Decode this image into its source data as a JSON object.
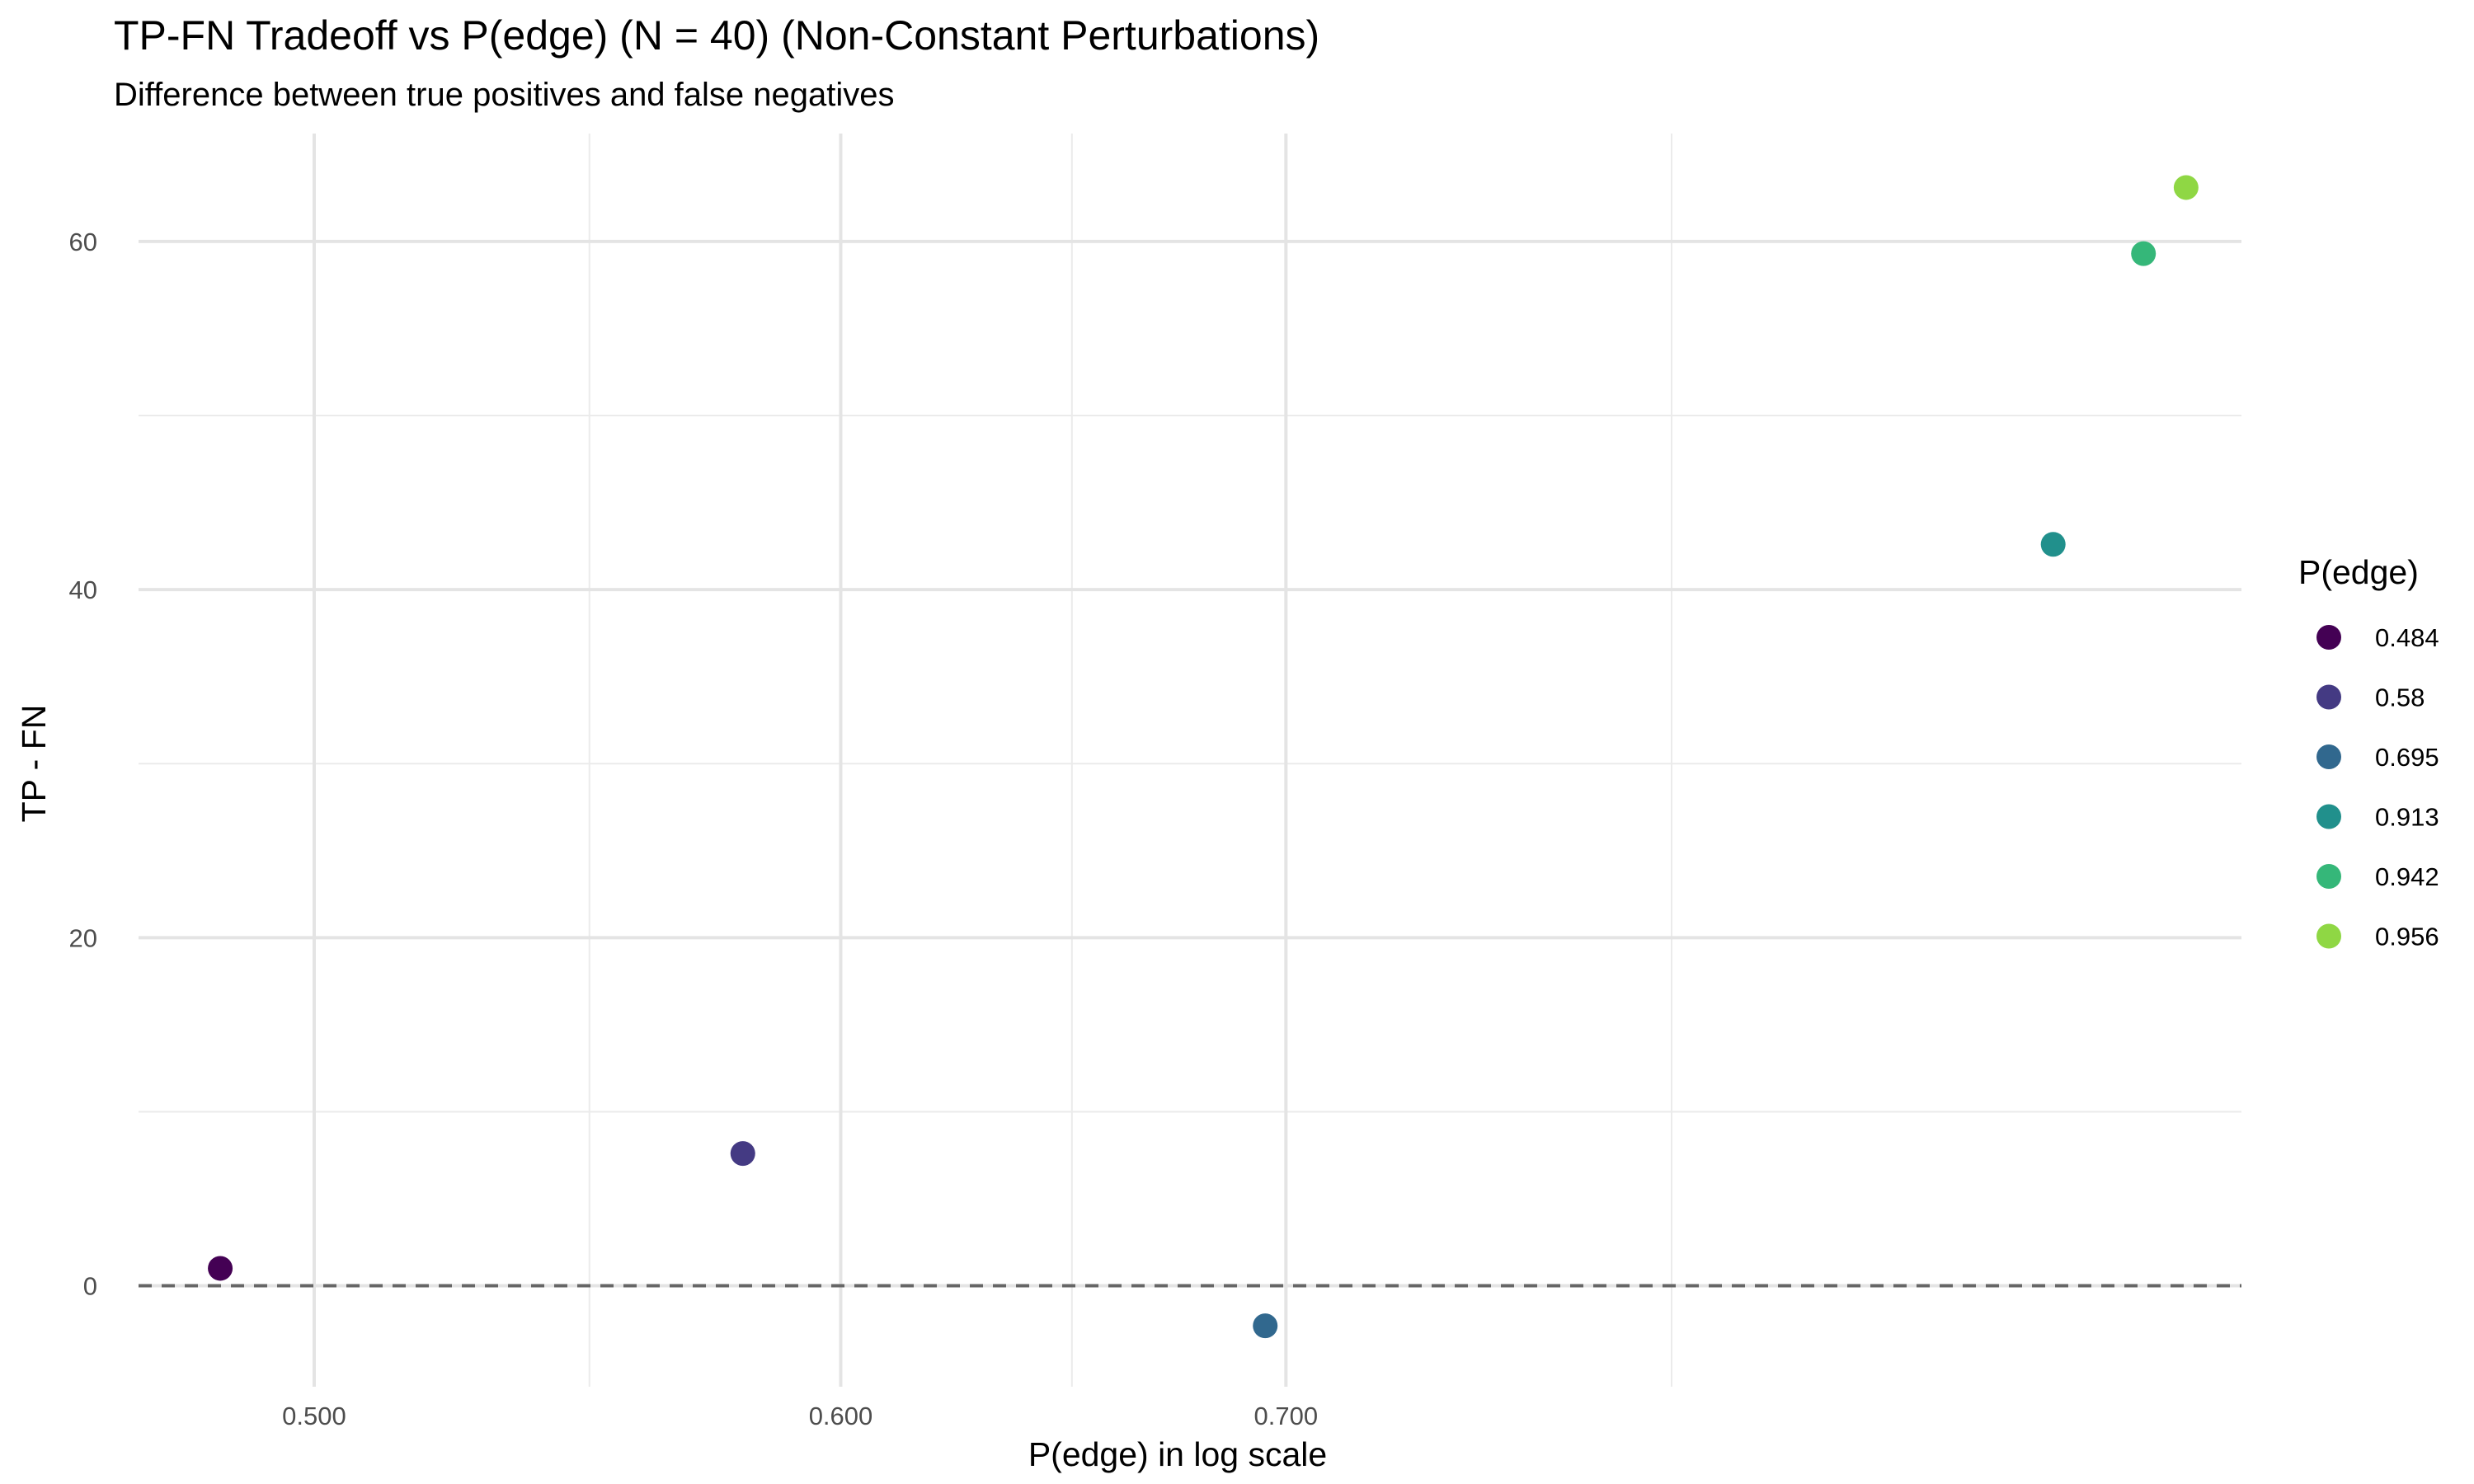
{
  "chart_data": {
    "type": "scatter",
    "title": "TP-FN Tradeoff vs P(edge) (N = 40) (Non-Constant Perturbations)",
    "subtitle": "Difference between true positives and false negatives",
    "xlabel": "P(edge) in log scale",
    "ylabel": "TP - FN",
    "x_scale": "log",
    "xlim": [
      0.4705,
      0.9745
    ],
    "ylim": [
      -5.8,
      66.2
    ],
    "x_ticks": [
      {
        "value": 0.5,
        "label": "0.500"
      },
      {
        "value": 0.6,
        "label": "0.600"
      },
      {
        "value": 0.7,
        "label": "0.700"
      }
    ],
    "x_minor_grid": [
      0.55,
      0.65,
      0.8
    ],
    "y_ticks": [
      {
        "value": 0,
        "label": "0"
      },
      {
        "value": 20,
        "label": "20"
      },
      {
        "value": 40,
        "label": "40"
      },
      {
        "value": 60,
        "label": "60"
      }
    ],
    "y_minor_grid": [
      10,
      30,
      50
    ],
    "reference_line": {
      "y": 0,
      "style": "dashed",
      "color": "#666666"
    },
    "grid": true,
    "legend": {
      "title": "P(edge)",
      "placement": "right"
    },
    "points": [
      {
        "x": 0.484,
        "y": 1.0,
        "label": "0.484",
        "color": "#440154"
      },
      {
        "x": 0.58,
        "y": 7.6,
        "label": "0.58",
        "color": "#443A83"
      },
      {
        "x": 0.695,
        "y": -2.3,
        "label": "0.695",
        "color": "#31688E"
      },
      {
        "x": 0.913,
        "y": 42.6,
        "label": "0.913",
        "color": "#21908C"
      },
      {
        "x": 0.942,
        "y": 59.3,
        "label": "0.942",
        "color": "#35B779"
      },
      {
        "x": 0.956,
        "y": 63.1,
        "label": "0.956",
        "color": "#8FD744"
      }
    ]
  }
}
